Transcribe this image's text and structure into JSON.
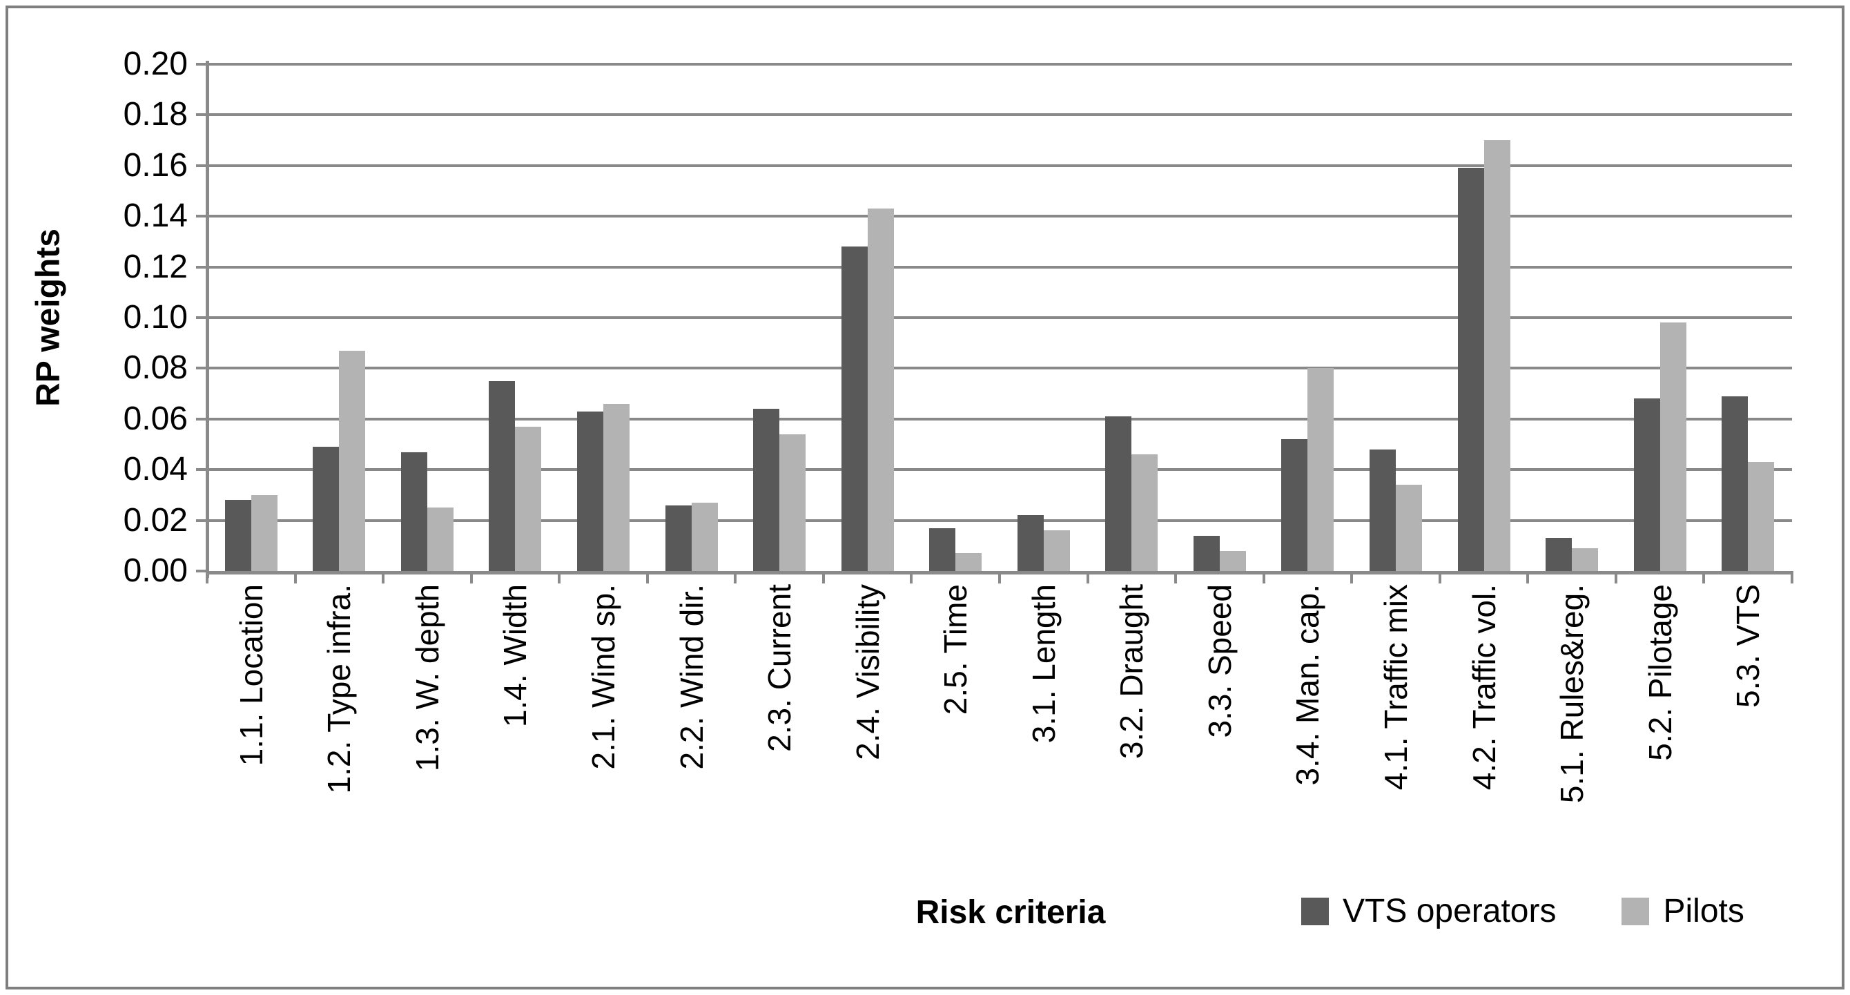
{
  "chart_data": {
    "type": "bar",
    "title": "",
    "xlabel": "Risk criteria",
    "ylabel": "RP weights",
    "ylim": [
      0,
      0.2
    ],
    "ytick_step": 0.02,
    "ytick_format_decimals": 2,
    "grid": true,
    "legend_position": "bottom-right",
    "categories": [
      "1.1. Location",
      "1.2. Type infra.",
      "1.3. W. depth",
      "1.4. Width",
      "2.1. Wind sp.",
      "2.2. Wind dir.",
      "2.3. Current",
      "2.4. Visibility",
      "2.5. Time",
      "3.1. Length",
      "3.2. Draught",
      "3.3. Speed",
      "3.4. Man. cap.",
      "4.1. Traffic mix",
      "4.2. Traffic vol.",
      "5.1. Rules&reg.",
      "5.2. Pilotage",
      "5.3. VTS"
    ],
    "series": [
      {
        "name": "VTS operators",
        "color": "#595959",
        "values": [
          0.028,
          0.049,
          0.047,
          0.075,
          0.063,
          0.026,
          0.064,
          0.128,
          0.017,
          0.022,
          0.061,
          0.014,
          0.052,
          0.048,
          0.159,
          0.013,
          0.068,
          0.069
        ]
      },
      {
        "name": "Pilots",
        "color": "#b3b3b3",
        "values": [
          0.03,
          0.087,
          0.025,
          0.057,
          0.066,
          0.027,
          0.054,
          0.143,
          0.007,
          0.016,
          0.046,
          0.008,
          0.08,
          0.034,
          0.17,
          0.009,
          0.098,
          0.043
        ]
      }
    ]
  },
  "colors": {
    "background": "#ffffff",
    "gridline": "#898989",
    "axis": "#8a8a8a",
    "border": "#7f7f7f",
    "text": "#000000"
  }
}
